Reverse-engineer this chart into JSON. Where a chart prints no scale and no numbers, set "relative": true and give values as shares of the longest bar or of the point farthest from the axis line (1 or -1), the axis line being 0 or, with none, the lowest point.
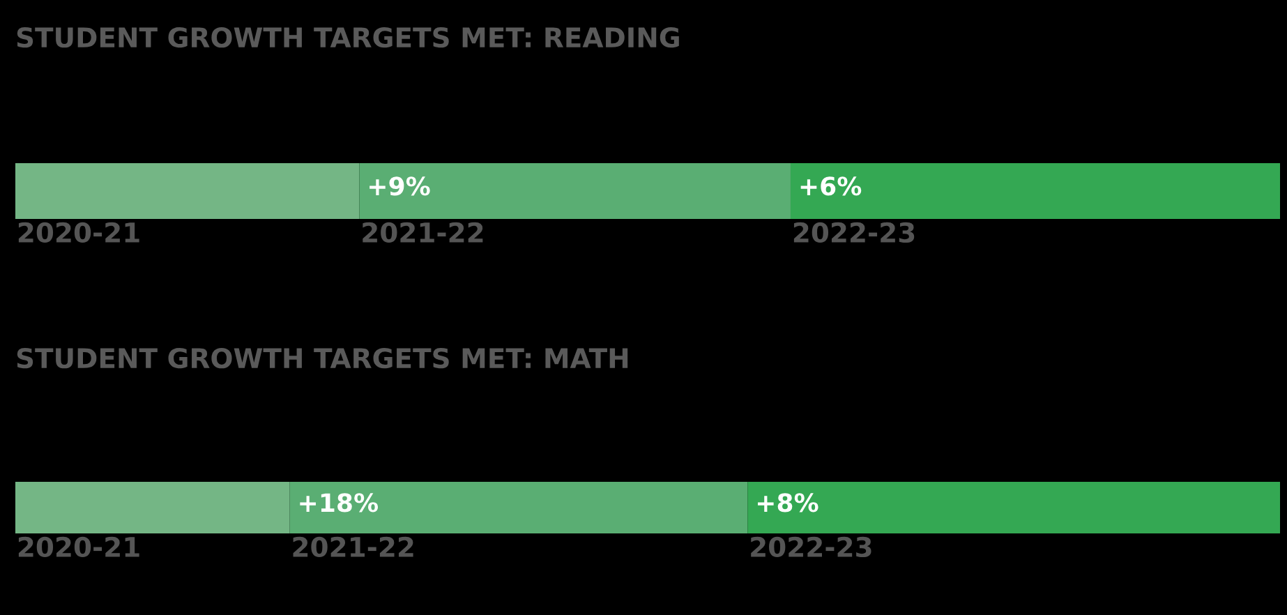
{
  "chart_data": [
    {
      "type": "bar",
      "orientation": "horizontal",
      "stacked": true,
      "relative": true,
      "title": "STUDENT GROWTH TARGETS MET: READING",
      "categories": [
        null
      ],
      "legend": false,
      "annotations": [
        "+9%",
        "+6%"
      ],
      "series": [
        {
          "name": "2020-21",
          "color": "#74b685",
          "values": [
            0.272
          ]
        },
        {
          "name": "2021-22",
          "color": "#5aae73",
          "values": [
            0.341
          ]
        },
        {
          "name": "2022-23",
          "color": "#34a853",
          "values": [
            0.387
          ]
        }
      ]
    },
    {
      "type": "bar",
      "orientation": "horizontal",
      "stacked": true,
      "relative": true,
      "title": "STUDENT GROWTH TARGETS MET: MATH",
      "categories": [
        null
      ],
      "legend": false,
      "annotations": [
        "+18%",
        "+8%"
      ],
      "series": [
        {
          "name": "2020-21",
          "color": "#74b685",
          "values": [
            0.217
          ]
        },
        {
          "name": "2021-22",
          "color": "#5aae73",
          "values": [
            0.362
          ]
        },
        {
          "name": "2022-23",
          "color": "#34a853",
          "values": [
            0.421
          ]
        }
      ]
    }
  ]
}
